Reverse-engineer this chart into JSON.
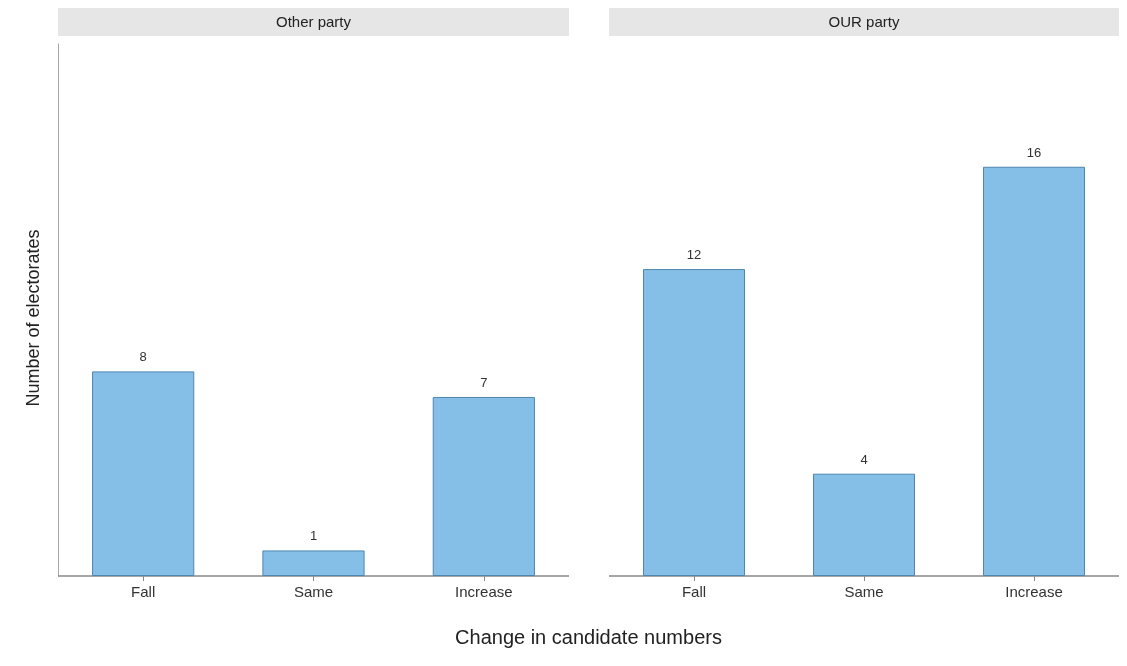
{
  "chart_data": [
    {
      "type": "bar",
      "title": "Other party",
      "ylabel": "Number of electorates",
      "xlabel": "Change in candidate numbers",
      "categories": [
        "Fall",
        "Same",
        "Increase"
      ],
      "values": [
        8,
        1,
        7
      ],
      "color": "#85bfe8",
      "data_labels": true,
      "tick_labels": "x",
      "grid": false
    },
    {
      "type": "bar",
      "title": "OUR party",
      "categories": [
        "Fall",
        "Same",
        "Increase"
      ],
      "values": [
        12,
        4,
        16
      ],
      "color": "#85bfe8",
      "data_labels": true,
      "tick_labels": "x",
      "grid": false
    }
  ]
}
